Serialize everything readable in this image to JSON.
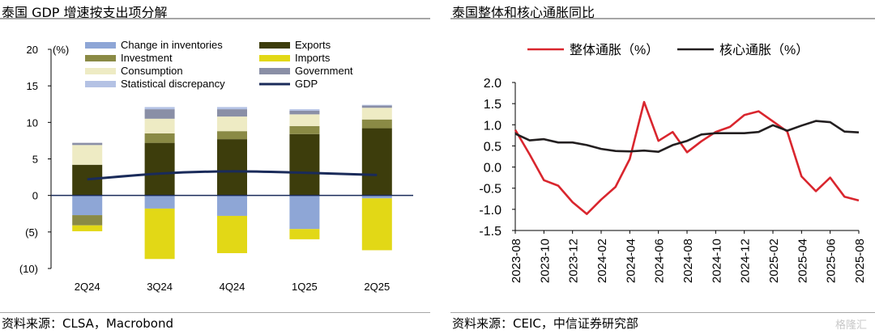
{
  "left_panel": {
    "title": "泰国 GDP 增速按支出项分解",
    "source": "资料来源：CLSA，Macrobond"
  },
  "right_panel": {
    "title": "泰国整体和核心通胀同比",
    "source": "资料来源：CEIC，中信证券研究部"
  },
  "watermark": "格隆汇",
  "chart_data": [
    {
      "type": "bar",
      "subtype": "stacked-with-line",
      "y_unit_label": "(%)",
      "categories": [
        "2Q24",
        "3Q24",
        "4Q24",
        "1Q25",
        "2Q25"
      ],
      "ylim": [
        -10,
        20
      ],
      "yticks": [
        -10,
        -5,
        0,
        5,
        10,
        15,
        20
      ],
      "ytick_labels": [
        "(10)",
        "(5)",
        "0",
        "5",
        "10",
        "15",
        "20"
      ],
      "legend_placement": "top",
      "series": [
        {
          "name": "Exports",
          "color": "#3d3d0c",
          "values": [
            4.2,
            7.2,
            7.7,
            8.4,
            9.2
          ]
        },
        {
          "name": "Investment",
          "color": "#8a8a45",
          "values": [
            0.0,
            1.3,
            1.1,
            1.1,
            1.2
          ]
        },
        {
          "name": "Consumption",
          "color": "#eeebc4",
          "values": [
            2.7,
            2.0,
            2.0,
            1.6,
            1.6
          ]
        },
        {
          "name": "Government",
          "color": "#8a8fa6",
          "values": [
            0.3,
            1.3,
            1.0,
            0.5,
            0.3
          ]
        },
        {
          "name": "Statistical discrepancy",
          "color": "#b4c2e4",
          "values": [
            0.0,
            0.3,
            0.3,
            0.2,
            0.1
          ]
        },
        {
          "name": "Change in inventories",
          "color": "#8ea6d6",
          "values": [
            -2.7,
            -1.8,
            -2.8,
            -4.6,
            -0.4
          ]
        },
        {
          "name": "Investment",
          "color": "#8a8a45",
          "values": [
            -1.4,
            0.0,
            0.0,
            0.0,
            0.0
          ]
        },
        {
          "name": "Imports",
          "color": "#e2d816",
          "values": [
            -0.8,
            -6.9,
            -5.1,
            -1.4,
            -7.1
          ]
        }
      ],
      "line": {
        "name": "GDP",
        "color": "#1a2b5a",
        "values": [
          2.2,
          3.0,
          3.3,
          3.1,
          2.8
        ]
      },
      "legend": [
        {
          "name": "Change in inventories",
          "color": "#8ea6d6",
          "kind": "box"
        },
        {
          "name": "Exports",
          "color": "#3d3d0c",
          "kind": "box"
        },
        {
          "name": "Investment",
          "color": "#8a8a45",
          "kind": "box"
        },
        {
          "name": "Imports",
          "color": "#e2d816",
          "kind": "box"
        },
        {
          "name": "Consumption",
          "color": "#eeebc4",
          "kind": "box"
        },
        {
          "name": "Government",
          "color": "#8a8fa6",
          "kind": "box"
        },
        {
          "name": "Statistical discrepancy",
          "color": "#b4c2e4",
          "kind": "box"
        },
        {
          "name": "GDP",
          "color": "#1a2b5a",
          "kind": "line"
        }
      ]
    },
    {
      "type": "line",
      "x": [
        "2023-08",
        "2023-09",
        "2023-10",
        "2023-11",
        "2023-12",
        "2024-01",
        "2024-02",
        "2024-03",
        "2024-04",
        "2024-05",
        "2024-06",
        "2024-07",
        "2024-08",
        "2024-09",
        "2024-10",
        "2024-11",
        "2024-12",
        "2025-01",
        "2025-02",
        "2025-03",
        "2025-04",
        "2025-05",
        "2025-06",
        "2025-07",
        "2025-08"
      ],
      "x_tick_labels": [
        "2023-08",
        "2023-10",
        "2023-12",
        "2024-02",
        "2024-04",
        "2024-06",
        "2024-08",
        "2024-10",
        "2024-12",
        "2025-02",
        "2025-04",
        "2025-06",
        "2025-08"
      ],
      "ylim": [
        -1.5,
        2.0
      ],
      "yticks": [
        "2.0",
        "1.5",
        "1.0",
        "0.5",
        "0.0",
        "-0.5",
        "-1.0",
        "-1.5"
      ],
      "legend_placement": "top",
      "series": [
        {
          "name": "整体通胀（%）",
          "color": "#d9262e",
          "values": [
            0.88,
            0.3,
            -0.31,
            -0.44,
            -0.83,
            -1.11,
            -0.77,
            -0.47,
            0.19,
            1.54,
            0.62,
            0.83,
            0.35,
            0.61,
            0.83,
            0.95,
            1.23,
            1.32,
            1.08,
            0.84,
            -0.22,
            -0.57,
            -0.25,
            -0.7,
            -0.79
          ]
        },
        {
          "name": "核心通胀（%）",
          "color": "#231f20",
          "values": [
            0.79,
            0.63,
            0.66,
            0.58,
            0.58,
            0.52,
            0.43,
            0.38,
            0.37,
            0.39,
            0.36,
            0.52,
            0.62,
            0.77,
            0.8,
            0.8,
            0.8,
            0.83,
            0.99,
            0.86,
            0.98,
            1.09,
            1.06,
            0.84,
            0.82
          ]
        }
      ]
    }
  ]
}
